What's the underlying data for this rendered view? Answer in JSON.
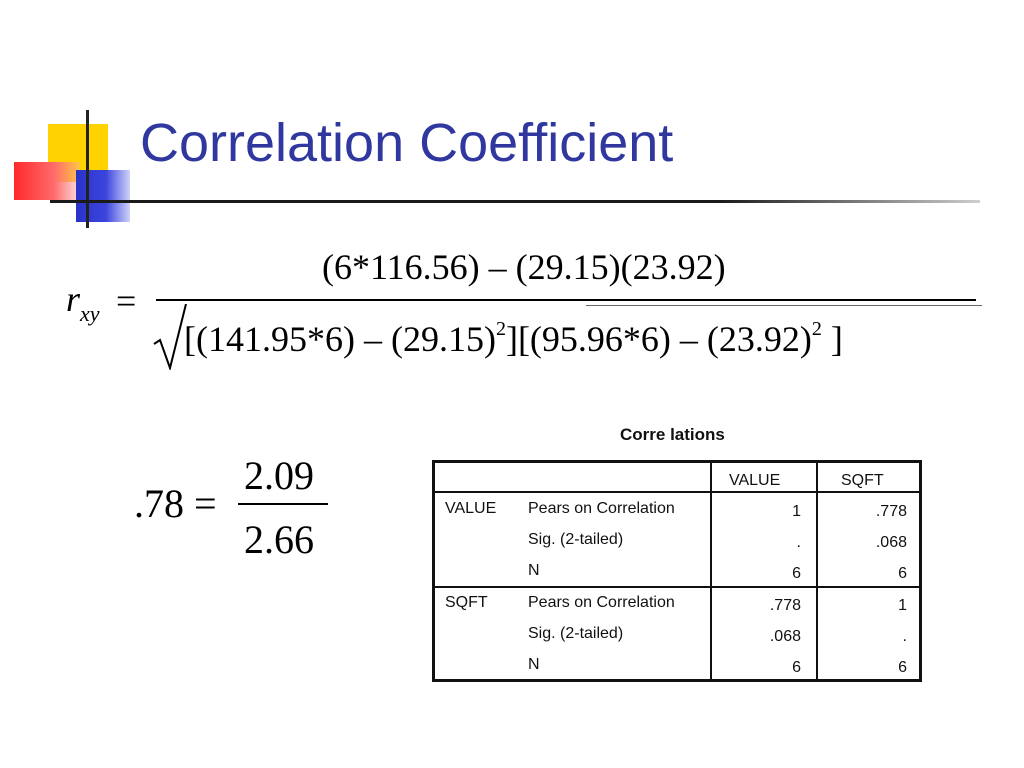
{
  "title": "Correlation Coefficient",
  "formula": {
    "lhs_var": "r",
    "lhs_sub": "xy",
    "equals": "=",
    "numerator": "(6*116.56) – (29.15)(23.92)",
    "denominator_part1": "[(141.95*6) – (29.15)",
    "exp1": "2",
    "denominator_part2": "][(95.96*6) – (23.92)",
    "exp2": "2",
    "denominator_part3": " ]"
  },
  "result": {
    "lhs": ".78 =",
    "numerator": "2.09",
    "denominator": "2.66"
  },
  "table": {
    "caption": "Corre lations",
    "col_headers": [
      "VALUE",
      "SQFT"
    ],
    "rows": [
      {
        "group": "VALUE",
        "stat": "Pears on Correlation",
        "v1": "1",
        "v2": ".778"
      },
      {
        "group": "",
        "stat": "Sig. (2-tailed)",
        "v1": ".",
        "v2": ".068"
      },
      {
        "group": "",
        "stat": "N",
        "v1": "6",
        "v2": "6"
      },
      {
        "group": "SQFT",
        "stat": "Pears on Correlation",
        "v1": ".778",
        "v2": "1"
      },
      {
        "group": "",
        "stat": "Sig. (2-tailed)",
        "v1": ".068",
        "v2": "."
      },
      {
        "group": "",
        "stat": "N",
        "v1": "6",
        "v2": "6"
      }
    ]
  },
  "colors": {
    "title": "#3038a0",
    "accent_yellow": "#ffd200",
    "accent_red": "#ff2a2a",
    "accent_blue": "#2a33c8"
  }
}
